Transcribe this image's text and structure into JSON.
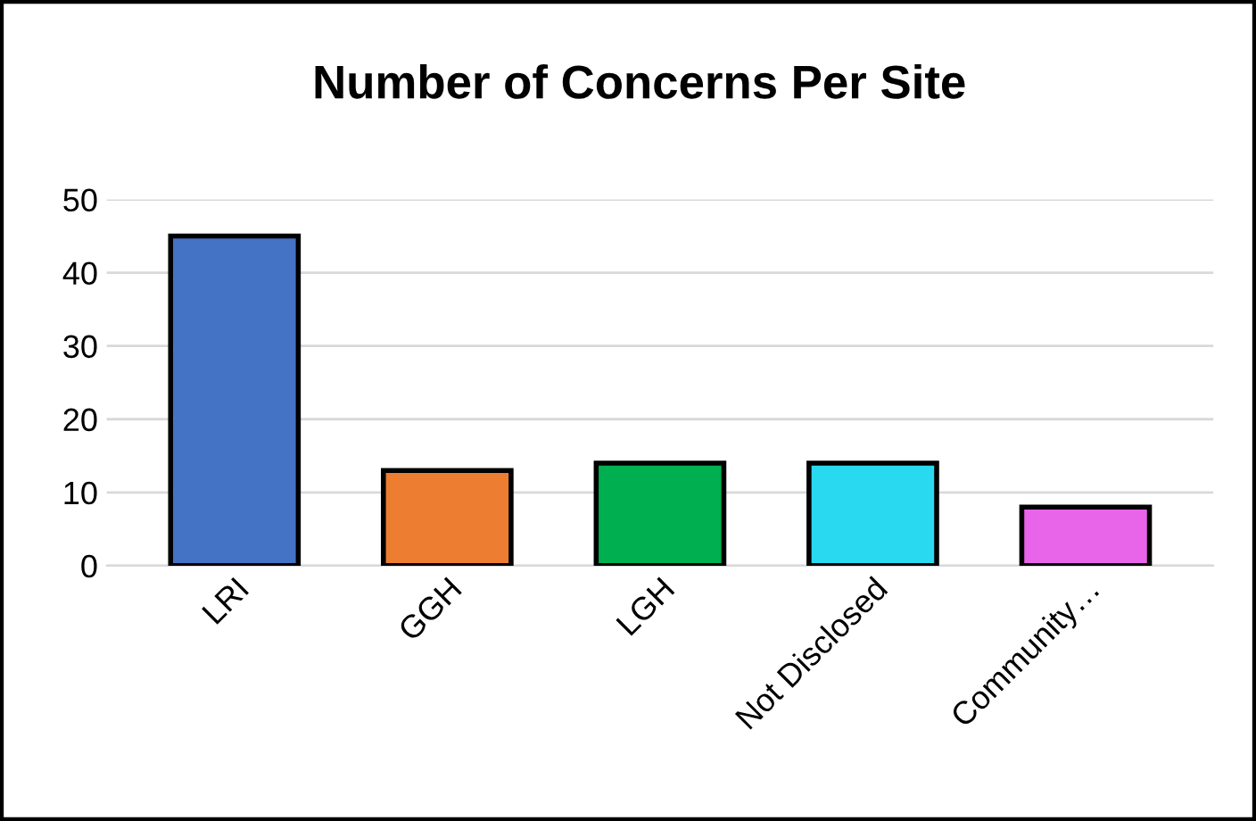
{
  "chart_data": {
    "type": "bar",
    "title": "Number of Concerns Per Site",
    "categories": [
      "LRI",
      "GGH",
      "LGH",
      "Not Disclosed",
      "Community…"
    ],
    "values": [
      45,
      13,
      14,
      14,
      8
    ],
    "colors": [
      "#4472c4",
      "#ed7d31",
      "#00b050",
      "#29d9f0",
      "#e864e8"
    ],
    "ylim": [
      0,
      50
    ],
    "yticks": [
      0,
      10,
      20,
      30,
      40,
      50
    ],
    "grid": "y"
  }
}
